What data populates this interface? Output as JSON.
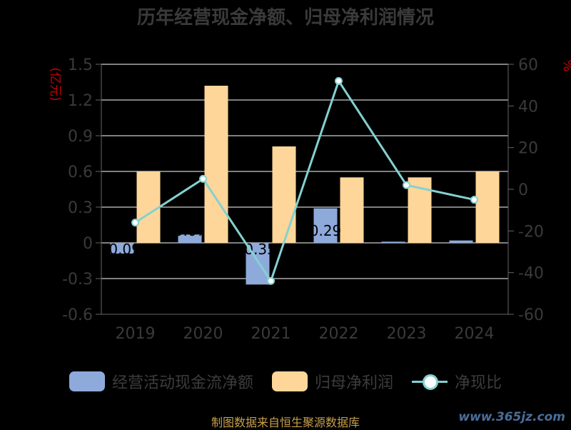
{
  "title": "历年经营现金净额、归母净利润情况",
  "left_unit": "(亿元)",
  "right_unit": "%",
  "legend": {
    "ocf": "经营活动现金流净额",
    "profit": "归母净利润",
    "ratio": "净现比"
  },
  "source": "制图数据来自恒生聚源数据库",
  "watermark": "www.365jz.com",
  "chart_data": {
    "type": "bar",
    "title": "历年经营现金净额、归母净利润情况",
    "categories": [
      "2019",
      "2020",
      "2021",
      "2022",
      "2023",
      "2024"
    ],
    "series": [
      {
        "name": "经营活动现金流净额",
        "type": "bar",
        "axis": "left",
        "color": "#8eaadb",
        "values": [
          -0.09,
          0.07,
          -0.35,
          0.29,
          0.01,
          0.02
        ],
        "labels": [
          "-0.09",
          "0.07",
          "-0.35",
          "0.29",
          "0.01",
          "0.02"
        ]
      },
      {
        "name": "归母净利润",
        "type": "bar",
        "axis": "left",
        "color": "#ffd699",
        "values": [
          0.6,
          1.32,
          0.81,
          0.55,
          0.55,
          0.6
        ]
      },
      {
        "name": "净现比",
        "type": "line",
        "axis": "right",
        "color": "#84d1d1",
        "values": [
          -16,
          5,
          -44,
          52,
          2,
          -5
        ]
      }
    ],
    "y_left": {
      "min": -0.6,
      "max": 1.5,
      "ticks": [
        "1.5",
        "1.2",
        "0.9",
        "0.6",
        "0.3",
        "0",
        "-0.3",
        "-0.6"
      ]
    },
    "y_right": {
      "min": -60,
      "max": 60,
      "ticks": [
        "60",
        "40",
        "20",
        "0",
        "-20",
        "-40",
        "-60"
      ]
    },
    "grid": true,
    "legend_position": "bottom"
  }
}
